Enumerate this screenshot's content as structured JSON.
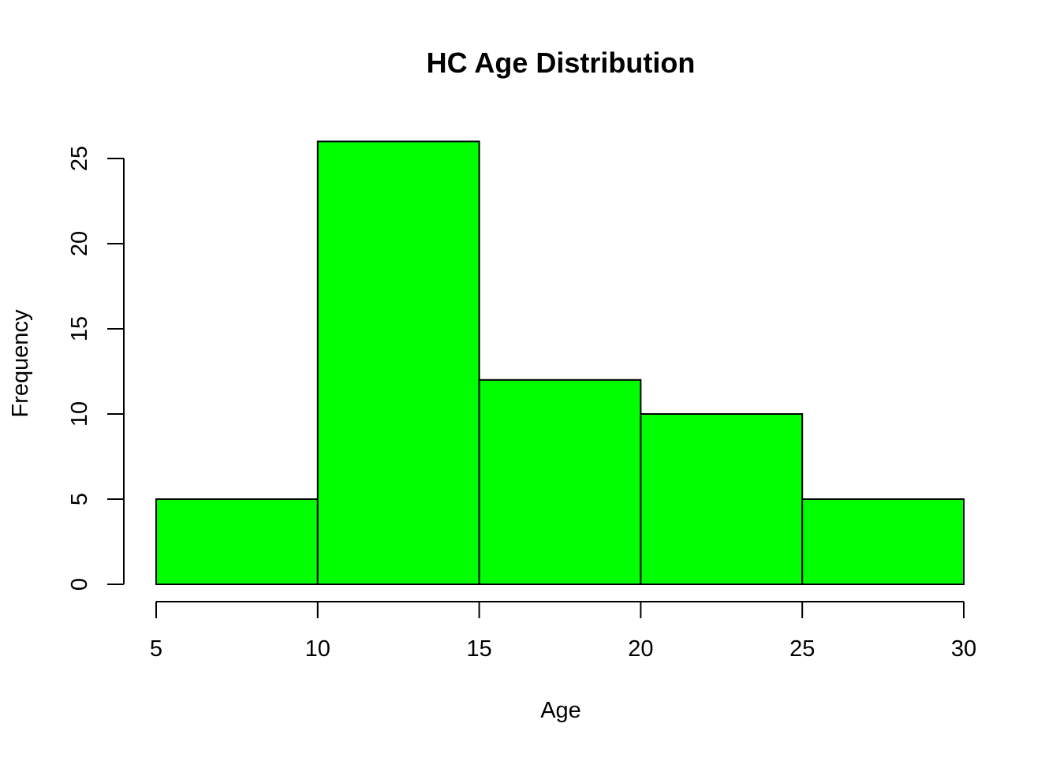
{
  "chart_data": {
    "type": "bar",
    "title": "HC Age Distribution",
    "xlabel": "Age",
    "ylabel": "Frequency",
    "bins": [
      [
        5,
        10
      ],
      [
        10,
        15
      ],
      [
        15,
        20
      ],
      [
        20,
        25
      ],
      [
        25,
        30
      ]
    ],
    "values": [
      5,
      26,
      12,
      10,
      5
    ],
    "xticks": [
      5,
      10,
      15,
      20,
      25,
      30
    ],
    "yticks": [
      0,
      5,
      10,
      15,
      20,
      25
    ],
    "xlim": [
      5,
      30
    ],
    "ylim": [
      0,
      26
    ],
    "bar_color": "#00ff00",
    "grid": false,
    "legend": "none"
  }
}
